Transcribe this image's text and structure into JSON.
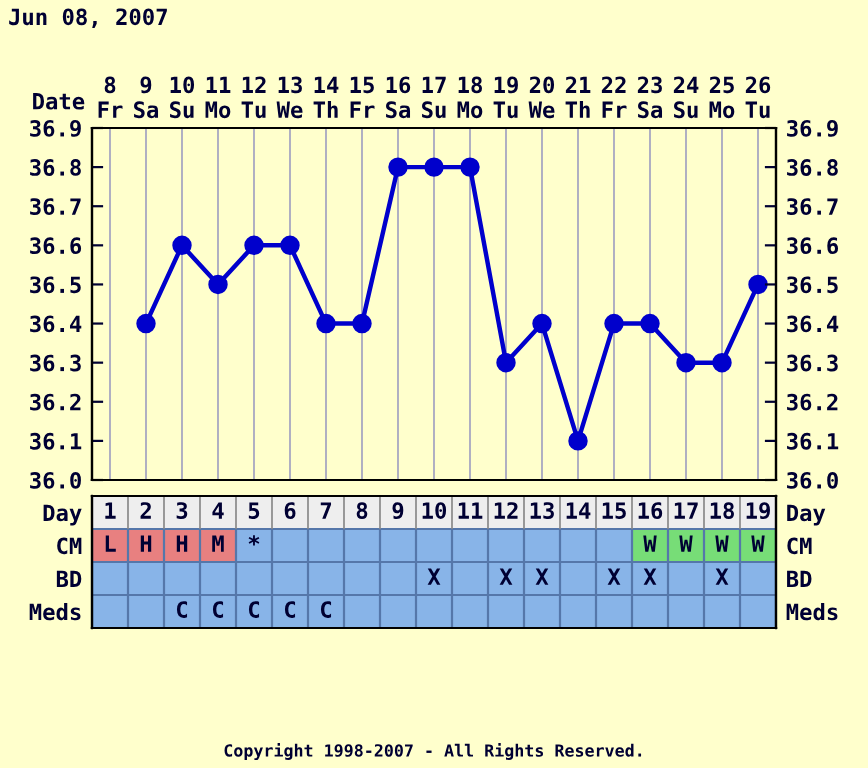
{
  "chart_data": [
    {
      "type": "line",
      "title": "Jun 08, 2007",
      "xlabel": "Date",
      "categories": [
        "8\nFr",
        "9\nSa",
        "10\nSu",
        "11\nMo",
        "12\nTu",
        "13\nWe",
        "14\nTh",
        "15\nFr",
        "16\nSa",
        "17\nSu",
        "18\nMo",
        "19\nTu",
        "20\nWe",
        "21\nTh",
        "22\nFr",
        "23\nSa",
        "24\nSu",
        "25\nMo",
        "26\nTu"
      ],
      "series": [
        {
          "color": "#0000cc",
          "values": [
            null,
            36.4,
            36.6,
            36.5,
            36.6,
            36.6,
            36.4,
            36.4,
            36.8,
            36.8,
            36.8,
            36.3,
            36.4,
            36.1,
            36.4,
            36.4,
            36.3,
            36.3,
            36.5
          ]
        }
      ],
      "ylim": [
        36.0,
        36.9
      ],
      "yticks": [
        {
          "value": 36.0,
          "label": "36.0"
        },
        36.1,
        36.2,
        36.3,
        36.4,
        36.5,
        36.6,
        36.7,
        36.8,
        36.9
      ],
      "y2lim": [
        36.0,
        36.9
      ],
      "y2ticks": [
        {
          "value": 36.0,
          "label": "36.0"
        },
        36.1,
        36.2,
        36.3,
        36.4,
        36.5,
        36.6,
        36.7,
        36.8,
        36.9
      ],
      "grid": "x",
      "marker": "circle",
      "line_style": "solid"
    },
    {
      "type": "heatmap",
      "xlabel": "Day",
      "categories": [
        "1",
        "2",
        "3",
        "4",
        "5",
        "6",
        "7",
        "8",
        "9",
        "10",
        "11",
        "12",
        "13",
        "14",
        "15",
        "16",
        "17",
        "18",
        "19"
      ],
      "y_categories": [
        "CM",
        "BD",
        "Meds"
      ],
      "y2_categories": [
        "CM",
        "BD",
        "Meds"
      ],
      "cells": [
        [
          null,
          null,
          null,
          null,
          null,
          null,
          null,
          null,
          null,
          null,
          null,
          null,
          null,
          null,
          null,
          null,
          null,
          null,
          null
        ],
        [
          null,
          null,
          null,
          null,
          null,
          null,
          null,
          null,
          null,
          null,
          null,
          null,
          null,
          null,
          null,
          null,
          null,
          null,
          null
        ],
        [
          null,
          null,
          null,
          null,
          null,
          null,
          null,
          null,
          null,
          null,
          null,
          null,
          null,
          null,
          null,
          null,
          null,
          null,
          null
        ]
      ],
      "cell_labels": [
        [
          "L",
          "H",
          "H",
          "M",
          "*",
          null,
          null,
          null,
          null,
          null,
          null,
          null,
          null,
          null,
          null,
          "W",
          "W",
          "W",
          "W"
        ],
        [
          null,
          null,
          null,
          null,
          null,
          null,
          null,
          null,
          null,
          "X",
          null,
          "X",
          "X",
          null,
          "X",
          "X",
          null,
          "X",
          null
        ],
        [
          null,
          null,
          "C",
          "C",
          "C",
          "C",
          "C",
          null,
          null,
          null,
          null,
          null,
          null,
          null,
          null,
          null,
          null,
          null,
          null
        ]
      ],
      "colors": [
        [
          "#e88080",
          "#e88080",
          "#e88080",
          "#e88080",
          "#88b4e8",
          "#88b4e8",
          "#88b4e8",
          "#88b4e8",
          "#88b4e8",
          "#88b4e8",
          "#88b4e8",
          "#88b4e8",
          "#88b4e8",
          "#88b4e8",
          "#88b4e8",
          "#77dd77",
          "#77dd77",
          "#77dd77",
          "#77dd77"
        ],
        [
          "#88b4e8",
          "#88b4e8",
          "#88b4e8",
          "#88b4e8",
          "#88b4e8",
          "#88b4e8",
          "#88b4e8",
          "#88b4e8",
          "#88b4e8",
          "#88b4e8",
          "#88b4e8",
          "#88b4e8",
          "#88b4e8",
          "#88b4e8",
          "#88b4e8",
          "#88b4e8",
          "#88b4e8",
          "#88b4e8",
          "#88b4e8"
        ],
        [
          "#88b4e8",
          "#88b4e8",
          "#88b4e8",
          "#88b4e8",
          "#88b4e8",
          "#88b4e8",
          "#88b4e8",
          "#88b4e8",
          "#88b4e8",
          "#88b4e8",
          "#88b4e8",
          "#88b4e8",
          "#88b4e8",
          "#88b4e8",
          "#88b4e8",
          "#88b4e8",
          "#88b4e8",
          "#88b4e8",
          "#88b4e8"
        ]
      ],
      "annotations": [
        "Copyright 1998-2007 - All Rights Reserved."
      ]
    }
  ]
}
